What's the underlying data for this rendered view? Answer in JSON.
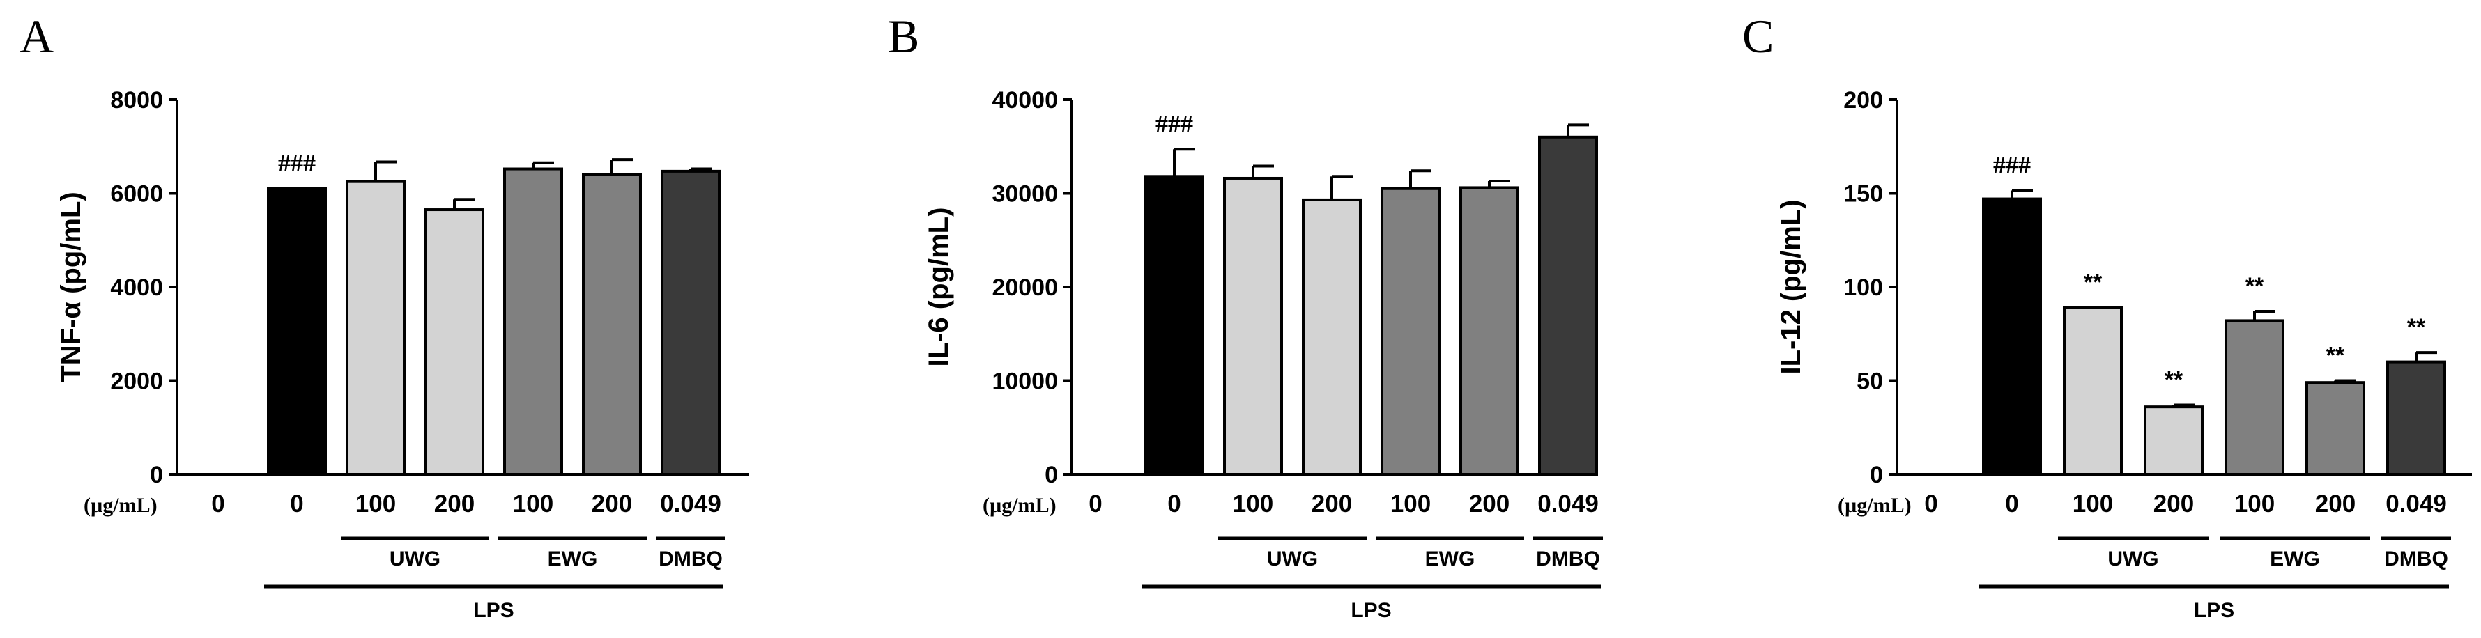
{
  "chart_data": [
    {
      "type": "bar",
      "panel": "A",
      "ylabel": "TNF-α (pg/mL)",
      "ylim": [
        0,
        8000
      ],
      "yticks": [
        "0",
        "2000",
        "4000",
        "6000",
        "8000"
      ],
      "unit_label": "(µg/mL)",
      "categories": [
        "0",
        "0",
        "100",
        "200",
        "100",
        "200",
        "0.049"
      ],
      "values": [
        0,
        6100,
        6250,
        5650,
        6520,
        6400,
        6470
      ],
      "errors": [
        0,
        0,
        420,
        220,
        130,
        320,
        50
      ],
      "colors": [
        "#000000",
        "#000000",
        "#d3d3d3",
        "#d3d3d3",
        "#808080",
        "#808080",
        "#3a3a3a"
      ],
      "annotations": [
        "",
        "###",
        "",
        "",
        "",
        "",
        ""
      ],
      "groups": [
        {
          "label": "UWG",
          "from": 2,
          "to": 3
        },
        {
          "label": "EWG",
          "from": 4,
          "to": 5
        },
        {
          "label": "DMBQ",
          "from": 6,
          "to": 6
        }
      ],
      "bracket": {
        "label": "LPS",
        "from": 1,
        "to": 6
      }
    },
    {
      "type": "bar",
      "panel": "B",
      "ylabel": "IL-6 (pg/mL)",
      "ylim": [
        0,
        40000
      ],
      "yticks": [
        "0",
        "10000",
        "20000",
        "30000",
        "40000"
      ],
      "unit_label": "(µg/mL)",
      "categories": [
        "0",
        "0",
        "100",
        "200",
        "100",
        "200",
        "0.049"
      ],
      "values": [
        0,
        31800,
        31600,
        29300,
        30500,
        30600,
        36000
      ],
      "errors": [
        0,
        2900,
        1300,
        2500,
        1900,
        700,
        1300
      ],
      "colors": [
        "#000000",
        "#000000",
        "#d3d3d3",
        "#d3d3d3",
        "#808080",
        "#808080",
        "#3a3a3a"
      ],
      "annotations": [
        "",
        "###",
        "",
        "",
        "",
        "",
        ""
      ],
      "groups": [
        {
          "label": "UWG",
          "from": 2,
          "to": 3
        },
        {
          "label": "EWG",
          "from": 4,
          "to": 5
        },
        {
          "label": "DMBQ",
          "from": 6,
          "to": 6
        }
      ],
      "bracket": {
        "label": "LPS",
        "from": 1,
        "to": 6
      }
    },
    {
      "type": "bar",
      "panel": "C",
      "ylabel": "IL-12 (pg/mL)",
      "ylim": [
        0,
        200
      ],
      "yticks": [
        "0",
        "50",
        "100",
        "150",
        "200"
      ],
      "unit_label": "(µg/mL)",
      "categories": [
        "0",
        "0",
        "100",
        "200",
        "100",
        "200",
        "0.049"
      ],
      "values": [
        0,
        147,
        89,
        36,
        82,
        49,
        60
      ],
      "errors": [
        0,
        4.5,
        0,
        1,
        5,
        1,
        5
      ],
      "colors": [
        "#000000",
        "#000000",
        "#d3d3d3",
        "#d3d3d3",
        "#808080",
        "#808080",
        "#3a3a3a"
      ],
      "annotations": [
        "",
        "###",
        "**",
        "**",
        "**",
        "**",
        "**"
      ],
      "groups": [
        {
          "label": "UWG",
          "from": 2,
          "to": 3
        },
        {
          "label": "EWG",
          "from": 4,
          "to": 5
        },
        {
          "label": "DMBQ",
          "from": 6,
          "to": 6
        }
      ],
      "bracket": {
        "label": "LPS",
        "from": 1,
        "to": 6
      }
    }
  ]
}
